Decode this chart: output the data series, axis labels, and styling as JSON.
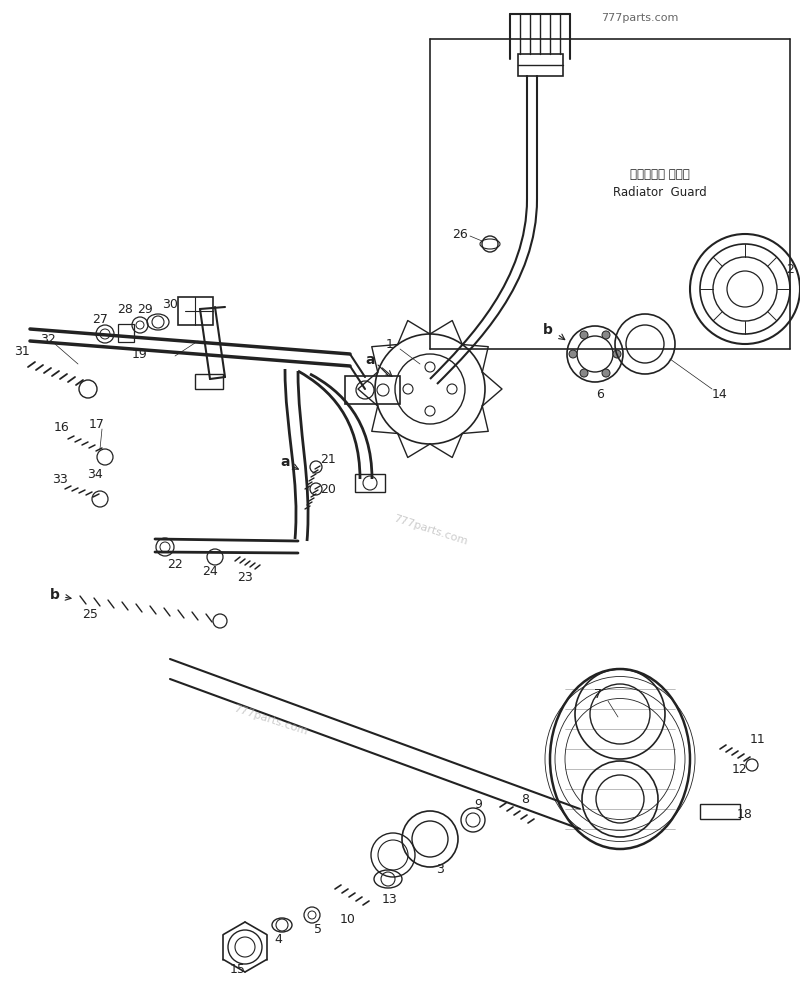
{
  "bg_color": "#ffffff",
  "line_color": "#222222",
  "watermark1": "777parts.com",
  "watermark2": "777parts.com",
  "watermark3": "777parts.com",
  "radiator_jp": "ラジエータ ガード",
  "radiator_en": "Radiator  Guard"
}
